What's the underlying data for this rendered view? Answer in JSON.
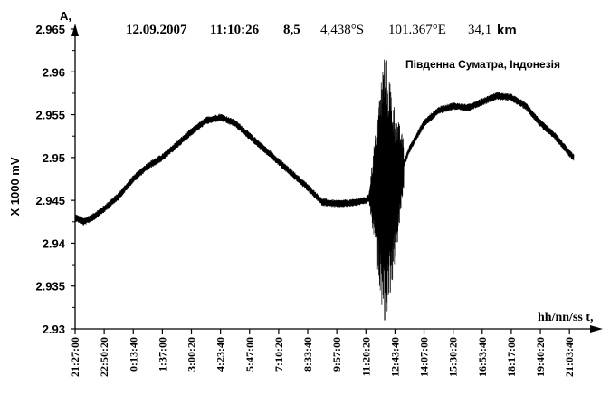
{
  "chart_data": {
    "type": "line",
    "header": {
      "date": "12.09.2007",
      "time": "11:10:26",
      "magnitude": "8,5",
      "latitude": "4,438°S",
      "longitude": "101.367°E",
      "depth_value": "34,1",
      "depth_unit": "km"
    },
    "annotation": "Південна Суматра, Індонезія",
    "ylabel_top": "A,",
    "ylabel": "X 1000 mV",
    "xlabel": "hh/nn/ss t,",
    "ylim": [
      2.93,
      2.965
    ],
    "yticks": [
      "2.93",
      "2.935",
      "2.94",
      "2.945",
      "2.95",
      "2.955",
      "2.96",
      "2.965"
    ],
    "xticks": [
      "21:27:00",
      "22:50:20",
      "0:13:40",
      "1:37:00",
      "3:00:20",
      "4:23:40",
      "5:47:00",
      "7:10:20",
      "8:33:40",
      "9:57:00",
      "11:20:20",
      "12:43:40",
      "14:07:00",
      "15:30:20",
      "16:53:40",
      "18:17:00",
      "19:40:20",
      "21:03:40"
    ],
    "xlim": [
      0,
      17.15
    ],
    "grid": false,
    "series": [
      {
        "x": [
          0,
          0.3,
          0.6,
          1.0,
          1.5,
          2.0,
          2.5,
          3.0,
          3.5,
          4.0,
          4.5,
          5.0,
          5.5,
          6.0,
          6.5,
          7.0,
          7.5,
          8.0,
          8.5,
          9.0,
          9.5,
          10.0,
          10.3,
          10.6,
          11.0,
          11.5,
          12.0,
          12.5,
          13.0,
          13.5,
          14.0,
          14.5,
          15.0,
          15.5,
          16.0,
          16.5,
          17.0,
          17.15
        ],
        "values": [
          2.943,
          2.9425,
          2.943,
          2.944,
          2.9455,
          2.9475,
          2.949,
          2.95,
          2.9515,
          2.953,
          2.9543,
          2.9547,
          2.954,
          2.9525,
          2.951,
          2.9495,
          2.948,
          2.9465,
          2.9448,
          2.9446,
          2.9447,
          2.945,
          2.946,
          2.9465,
          2.9465,
          2.951,
          2.954,
          2.9555,
          2.956,
          2.9558,
          2.9565,
          2.9572,
          2.957,
          2.956,
          2.954,
          2.9525,
          2.9505,
          2.95
        ]
      }
    ],
    "burst": {
      "start": 10.1,
      "peak": 10.65,
      "end": 11.3,
      "max": 2.9635,
      "min": 2.931
    }
  }
}
